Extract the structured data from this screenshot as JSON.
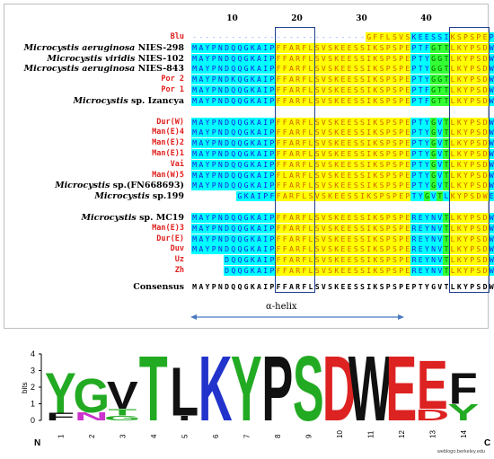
{
  "ruler": [
    {
      "label": "10",
      "col": 7
    },
    {
      "label": "20",
      "col": 17
    },
    {
      "label": "30",
      "col": 27
    },
    {
      "label": "40",
      "col": 37
    }
  ],
  "groups": [
    [
      {
        "name": "Blu",
        "color": "red",
        "italic": false,
        "seq": "---------------------------GFFLSVSKEESSIKSPSPEPTFGTTLKYPSDWEEY",
        "offset": 0
      },
      {
        "name": "Microcystis aeruginosa",
        "suffix": " NIES-298",
        "italic": true,
        "seq": "MAYPNDQQGKAIPFFARFLSVSKEESSIKSPSPEPTFGTTLKYPSDWEEY",
        "offset": 0
      },
      {
        "name": "Microcystis viridis",
        "suffix": " NIES-102",
        "italic": true,
        "seq": "MAYPNDQQGKAIPFFARFLSVSKEESSIKSPSPEPTYGGTLKYPSDWEEY",
        "offset": 0
      },
      {
        "name": "Microcystis aeruginosa",
        "suffix": " NIES-843",
        "italic": true,
        "seq": "MAYPNDQQGKAIPFFARFLSVSKEESSIKSPSPEPTYGGTLKYPSDWEDY",
        "offset": 0
      },
      {
        "name": "Por 2",
        "color": "red",
        "italic": false,
        "seq": "MAYPNDKQGKAIPFFARFLSVSKEESSIKSPSPEPTYGGTLKYPSDWEEY",
        "offset": 0
      },
      {
        "name": "Por 1",
        "color": "red",
        "italic": false,
        "seq": "MAYPNDQQGKAIPFFARFLSVSKEESSIKSPSPEPTFGTTLKYPSDWEDY",
        "offset": 0
      },
      {
        "name": "Microcystis",
        "suffix": " sp. Izancya",
        "italic": true,
        "seq": "MAYPNDQQGKAIPFFARFLSVSKEESSIKSPSPEPTFGTTLKYPSDWEEY",
        "offset": 0
      }
    ],
    [
      {
        "name": "Dur(W)",
        "color": "red",
        "italic": false,
        "seq": "MAYPNDQQGKAIPFFARFLSVSKEESSIKSPSPEPTYGVTLKYPSDWEEF",
        "offset": 0
      },
      {
        "name": "Man(E)4",
        "color": "red",
        "italic": false,
        "seq": "MAYPNDQQGKAIPFFARFLSVSKEESSIKSPSPEPTYGVTLKYPSDWEEF",
        "offset": 0
      },
      {
        "name": "Man(E)2",
        "color": "red",
        "italic": false,
        "seq": "MAYPNDQQGKAIPFFARFLSVSKEESSIKSPSPEPTYGVTLKYPSDWEEF",
        "offset": 0
      },
      {
        "name": "Man(E)1",
        "color": "red",
        "italic": false,
        "seq": "MAYPNDQQGKAIPFFARFLSVSKEESSIKSPSPEPTYGVTLKYPSDWEEF",
        "offset": 0
      },
      {
        "name": "Vai",
        "color": "red",
        "italic": false,
        "seq": "MAYPNDQQGKAIPFFARFLSVSKEESSIKSPSPEPTYGVTLKYPSDWEEF",
        "offset": 0
      },
      {
        "name": "Man(W)5",
        "color": "red",
        "italic": false,
        "seq": "MAYPNDQQGKAIPFLARFLSVSKEESSIKSPSPEPTYGVTLKYPSDWEEF",
        "offset": 0
      },
      {
        "name": "Microcystis",
        "suffix": " sp.(FN668693)",
        "italic": true,
        "seq": "MAYPNDQQGKAIPFFARFLSVSKEESSIKSPSPEPTYGVTLKYPSDWEEF",
        "offset": 0
      },
      {
        "name": "Microcystis",
        "suffix": " sp.199",
        "italic": true,
        "seq": "GKAIPFFARFLSVSKEESSIKSPSPEPTYGVTLKYPSDWEEF",
        "offset": 7
      }
    ],
    [
      {
        "name": "Microcystis",
        "suffix": " sp. MC19",
        "italic": true,
        "seq": "MAYPNDQQGKAIPFFARFLSVSKEESSIKSPSPEREYNVTLKYPSDWEEF",
        "offset": 0
      },
      {
        "name": "Man(E)3",
        "color": "red",
        "italic": false,
        "seq": "MAYPNDQQGKAIPFFARFLSVSKEESSIKSPSPEREYNVTLKYPSDWEEF",
        "offset": 0
      },
      {
        "name": "Dur(E)",
        "color": "red",
        "italic": false,
        "seq": "MAYPNDQQGKAIPFFARFLSVSKEESSIKSPSPEREYNVTLKYPSDWEEF",
        "offset": 0
      },
      {
        "name": "Duv",
        "color": "red",
        "italic": false,
        "seq": "MAYPNDQQGKAIPFFARFLSVSKEESSIKSPSPEREYNVTLKYPSDWEEF",
        "offset": 0
      },
      {
        "name": "Uz",
        "color": "red",
        "italic": false,
        "seq": "DQQGKAIPFFARFLSVSKEESSIKSPSPEREYNVTLKYPSDWEEF",
        "offset": 5
      },
      {
        "name": "Zh",
        "color": "red",
        "italic": false,
        "seq": "DQQGKAIPFFARFLSVSKEESSIKSPSPEREYNVTLKYPSDWEEF",
        "offset": 5
      }
    ]
  ],
  "consensus": {
    "label": "Consensus",
    "seq": "MAYPNDQQGKAIPFFARFLSVSKEESSIKSPSPEPTYGVTLKYPSDWEEF"
  },
  "helix_label": "α-helix",
  "logo": {
    "y_label": "bits",
    "y_ticks": [
      "0",
      "1",
      "2",
      "3",
      "4"
    ],
    "n_label": "N",
    "c_label": "C",
    "credit": "weblogo.berkeley.edu",
    "positions": [
      {
        "pos": "1",
        "letters": [
          {
            "c": "Y",
            "h": 2.5,
            "color": "#22aa22"
          },
          {
            "c": "F",
            "h": 0.45,
            "color": "#111"
          }
        ]
      },
      {
        "pos": "2",
        "letters": [
          {
            "c": "G",
            "h": 2.1,
            "color": "#22aa22"
          },
          {
            "c": "N",
            "h": 0.5,
            "color": "#cc33cc"
          }
        ]
      },
      {
        "pos": "3",
        "letters": [
          {
            "c": "V",
            "h": 1.7,
            "color": "#111"
          },
          {
            "c": "T",
            "h": 0.4,
            "color": "#22aa22"
          },
          {
            "c": "G",
            "h": 0.3,
            "color": "#22aa22"
          }
        ]
      },
      {
        "pos": "4",
        "letters": [
          {
            "c": "T",
            "h": 4.0,
            "color": "#22aa22"
          }
        ]
      },
      {
        "pos": "5",
        "letters": [
          {
            "c": "L",
            "h": 3.0,
            "color": "#111"
          },
          {
            "c": "I",
            "h": 0.3,
            "color": "#111"
          }
        ]
      },
      {
        "pos": "6",
        "letters": [
          {
            "c": "K",
            "h": 4.0,
            "color": "#2233cc"
          }
        ]
      },
      {
        "pos": "7",
        "letters": [
          {
            "c": "Y",
            "h": 4.0,
            "color": "#22aa22"
          }
        ]
      },
      {
        "pos": "8",
        "letters": [
          {
            "c": "P",
            "h": 4.0,
            "color": "#111"
          }
        ]
      },
      {
        "pos": "9",
        "letters": [
          {
            "c": "S",
            "h": 4.0,
            "color": "#22aa22"
          }
        ]
      },
      {
        "pos": "10",
        "letters": [
          {
            "c": "D",
            "h": 4.0,
            "color": "#dd2222"
          }
        ]
      },
      {
        "pos": "11",
        "letters": [
          {
            "c": "W",
            "h": 4.0,
            "color": "#111"
          }
        ]
      },
      {
        "pos": "12",
        "letters": [
          {
            "c": "E",
            "h": 4.0,
            "color": "#dd2222"
          }
        ]
      },
      {
        "pos": "13",
        "letters": [
          {
            "c": "E",
            "h": 3.0,
            "color": "#dd2222"
          },
          {
            "c": "D",
            "h": 0.7,
            "color": "#dd2222"
          }
        ]
      },
      {
        "pos": "14",
        "letters": [
          {
            "c": "F",
            "h": 1.9,
            "color": "#111"
          },
          {
            "c": "Y",
            "h": 1.0,
            "color": "#22aa22"
          }
        ]
      }
    ]
  }
}
